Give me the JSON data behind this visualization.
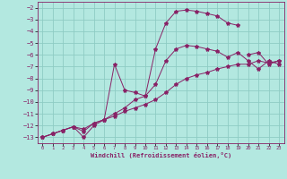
{
  "xlabel": "Windchill (Refroidissement éolien,°C)",
  "background_color": "#b3e8e0",
  "grid_color": "#8eccc4",
  "line_color": "#882266",
  "xlim": [
    -0.5,
    23.5
  ],
  "ylim": [
    -13.5,
    -1.5
  ],
  "xticks": [
    0,
    1,
    2,
    3,
    4,
    5,
    6,
    7,
    8,
    9,
    10,
    11,
    12,
    13,
    14,
    15,
    16,
    17,
    18,
    19,
    20,
    21,
    22,
    23
  ],
  "yticks": [
    -13,
    -12,
    -11,
    -10,
    -9,
    -8,
    -7,
    -6,
    -5,
    -4,
    -3,
    -2
  ],
  "series": [
    {
      "x": [
        0,
        1,
        2,
        3,
        4,
        5,
        6,
        7,
        8,
        9,
        10,
        11,
        12,
        13,
        14,
        15,
        16,
        17,
        18,
        19,
        20,
        21,
        22,
        23
      ],
      "y": [
        -13,
        -12.7,
        -12.4,
        -12.1,
        -12.5,
        -11.8,
        -11.5,
        -11.2,
        -10.8,
        -10.5,
        -10.2,
        -9.8,
        -9.2,
        -8.5,
        -8.0,
        -7.7,
        -7.5,
        -7.2,
        -7.0,
        -6.8,
        -6.8,
        -6.5,
        -6.7,
        -6.5
      ]
    },
    {
      "x": [
        0,
        1,
        2,
        3,
        4,
        5,
        6,
        7,
        8,
        9,
        10,
        11,
        12,
        13,
        14,
        15,
        16,
        17,
        18,
        19,
        20,
        21,
        22,
        23
      ],
      "y": [
        -13,
        -12.7,
        -12.4,
        -12.1,
        -13.0,
        -12.0,
        -11.5,
        -6.8,
        -9.0,
        -9.2,
        -9.5,
        -5.5,
        -3.3,
        -2.3,
        -2.2,
        -2.3,
        -2.5,
        -2.7,
        -3.3,
        -3.5,
        null,
        null,
        null,
        null
      ]
    },
    {
      "x": [
        0,
        1,
        2,
        3,
        4,
        5,
        6,
        7,
        8,
        9,
        10,
        11,
        12,
        13,
        14,
        15,
        16,
        17,
        18,
        19,
        20,
        21,
        22,
        23
      ],
      "y": [
        -13,
        -12.7,
        -12.4,
        -12.1,
        -12.3,
        -11.8,
        -11.5,
        -11.0,
        -10.5,
        -9.8,
        -9.5,
        -8.5,
        -6.5,
        -5.5,
        -5.2,
        -5.3,
        -5.5,
        -5.7,
        -6.2,
        -5.8,
        -6.5,
        -7.2,
        -6.5,
        -6.8
      ]
    }
  ],
  "series2": [
    {
      "x": [
        20,
        21,
        22,
        23
      ],
      "y": [
        -6.0,
        -5.8,
        -6.8,
        -6.5
      ]
    }
  ]
}
